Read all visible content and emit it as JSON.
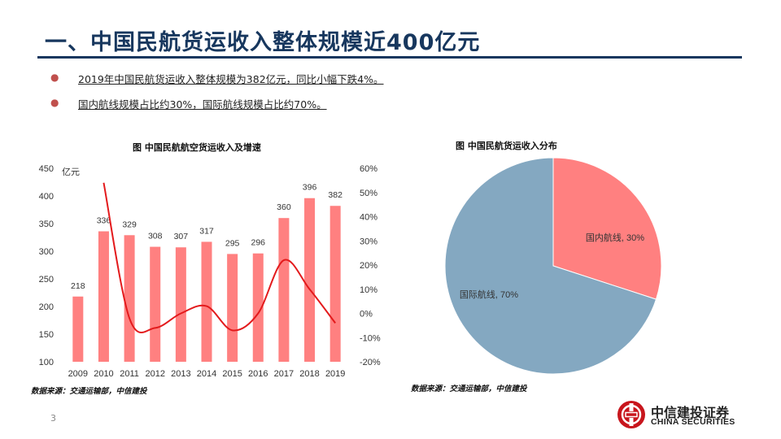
{
  "page": {
    "title": "一、中国民航货运收入整体规模近400亿元",
    "bullets": [
      "2019年中国民航货运收入整体规模为382亿元，同比小幅下跌4%。",
      "国内航线规模占比约30%，国际航线规模占比约70%。"
    ],
    "page_number": "3",
    "logo": {
      "cn": "中信建投证券",
      "en": "CHINA SECURITIES"
    }
  },
  "colors": {
    "title": "#17375e",
    "bar": "#ff8080",
    "line": "#e31a1c",
    "pie_domestic": "#ff8080",
    "pie_international": "#84a8c1",
    "bullet": "#c0504d"
  },
  "chart_data": [
    {
      "type": "bar",
      "title": "图  中国民航航空货运收入及增速",
      "source": "数据来源：交通运输部，中信建投",
      "unit_label": "亿元",
      "categories": [
        "2009",
        "2010",
        "2011",
        "2012",
        "2013",
        "2014",
        "2015",
        "2016",
        "2017",
        "2018",
        "2019"
      ],
      "series": [
        {
          "values": [
            218,
            336,
            329,
            308,
            307,
            317,
            295,
            296,
            360,
            396,
            382
          ],
          "axis": "left",
          "kind": "bar"
        },
        {
          "values": [
            null,
            54,
            -2,
            -6,
            0,
            3,
            -7,
            0,
            22,
            10,
            -4
          ],
          "axis": "right",
          "kind": "line"
        }
      ],
      "ylim_left": [
        100,
        450
      ],
      "yticks_left": [
        "100",
        "150",
        "200",
        "250",
        "300",
        "350",
        "400",
        "450"
      ],
      "ylim_right": [
        -20,
        60
      ],
      "yticks_right": [
        "-20%",
        "-10%",
        "0%",
        "10%",
        "20%",
        "30%",
        "40%",
        "50%",
        "60%"
      ],
      "data_labels": [
        "218",
        "336",
        "329",
        "308",
        "307",
        "317",
        "295",
        "296",
        "360",
        "396",
        "382"
      ]
    },
    {
      "type": "pie",
      "title": "图  中国民航货运收入分布",
      "source": "数据来源：交通运输部，中信建投",
      "slices": [
        {
          "label": "国内航线, 30%",
          "value": 30
        },
        {
          "label": "国际航线, 70%",
          "value": 70
        }
      ]
    }
  ]
}
